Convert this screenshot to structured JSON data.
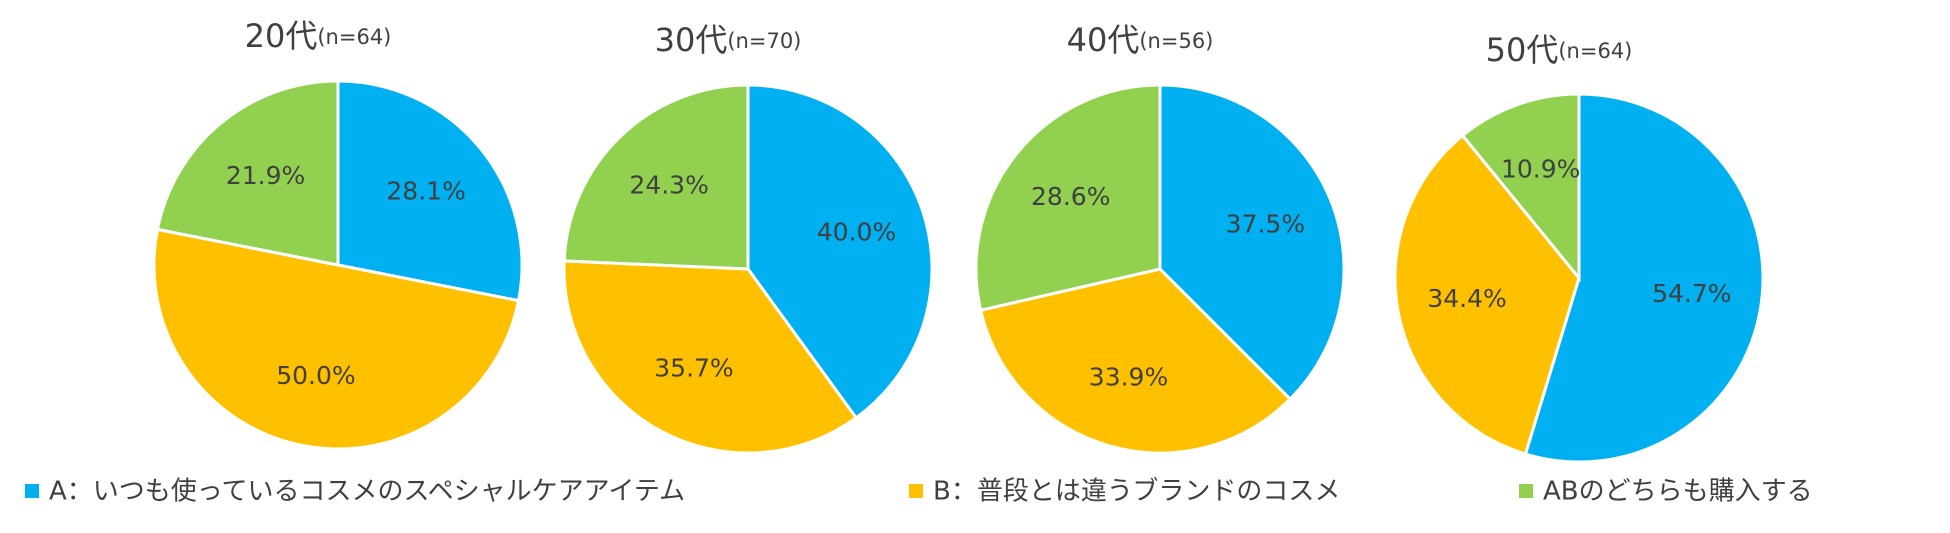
{
  "chart_data": [
    {
      "type": "pie",
      "title": "20代",
      "subtitle": "(n=64)",
      "categories": [
        "A：いつも使っているコスメのスペシャルケアアイテム",
        "B：普段とは違うブランドのコスメ",
        "ABのどちらも購入する"
      ],
      "values": [
        28.1,
        50.0,
        21.9
      ],
      "value_labels": [
        "28.1%",
        "50.0%",
        "21.9%"
      ],
      "colors": [
        "#00b0f0",
        "#ffc000",
        "#92d050"
      ]
    },
    {
      "type": "pie",
      "title": "30代",
      "subtitle": "(n=70)",
      "categories": [
        "A：いつも使っているコスメのスペシャルケアアイテム",
        "B：普段とは違うブランドのコスメ",
        "ABのどちらも購入する"
      ],
      "values": [
        40.0,
        35.7,
        24.3
      ],
      "value_labels": [
        "40.0%",
        "35.7%",
        "24.3%"
      ],
      "colors": [
        "#00b0f0",
        "#ffc000",
        "#92d050"
      ]
    },
    {
      "type": "pie",
      "title": "40代",
      "subtitle": "(n=56)",
      "categories": [
        "A：いつも使っているコスメのスペシャルケアアイテム",
        "B：普段とは違うブランドのコスメ",
        "ABのどちらも購入する"
      ],
      "values": [
        37.5,
        33.9,
        28.6
      ],
      "value_labels": [
        "37.5%",
        "33.9%",
        "28.6%"
      ],
      "colors": [
        "#00b0f0",
        "#ffc000",
        "#92d050"
      ]
    },
    {
      "type": "pie",
      "title": "50代",
      "subtitle": "(n=64)",
      "categories": [
        "A：いつも使っているコスメのスペシャルケアアイテム",
        "B：普段とは違うブランドのコスメ",
        "ABのどちらも購入する"
      ],
      "values": [
        54.7,
        34.4,
        10.9
      ],
      "value_labels": [
        "54.7%",
        "34.4%",
        "10.9%"
      ],
      "colors": [
        "#00b0f0",
        "#ffc000",
        "#92d050"
      ]
    }
  ]
}
